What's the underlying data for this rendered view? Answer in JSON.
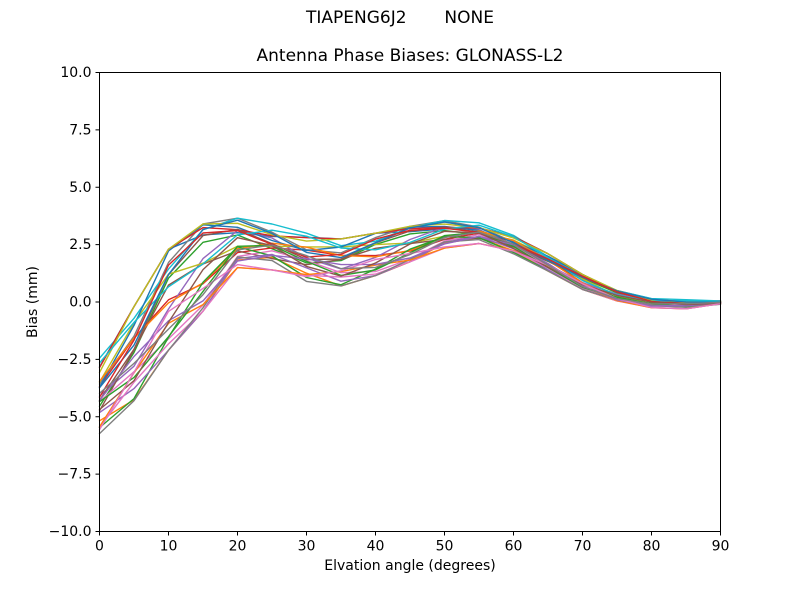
{
  "figure": {
    "suptitle": "TIAPENG6J2       NONE",
    "background": "#ffffff",
    "text_color": "#000000"
  },
  "chart_data": {
    "type": "line",
    "title": "Antenna Phase Biases: GLONASS-L2",
    "xlabel": "Elvation angle (degrees)",
    "ylabel": "Bias (mm)",
    "xlim": [
      0,
      90
    ],
    "ylim": [
      -10.0,
      10.0
    ],
    "xticks": [
      0,
      10,
      20,
      30,
      40,
      50,
      60,
      70,
      80,
      90
    ],
    "yticks": [
      -10.0,
      -7.5,
      -5.0,
      -2.5,
      0.0,
      2.5,
      5.0,
      7.5,
      10.0
    ],
    "grid": false,
    "legend": "none",
    "n_series": 28,
    "series_colors": [
      "#1f77b4",
      "#ff7f0e",
      "#2ca02c",
      "#d62728",
      "#9467bd",
      "#8c564b",
      "#e377c2",
      "#7f7f7f",
      "#bcbd22",
      "#17becf"
    ],
    "band": {
      "x_degrees": [
        0,
        5,
        10,
        15,
        20,
        25,
        30,
        35,
        40,
        45,
        50,
        55,
        60,
        65,
        70,
        75,
        80,
        85,
        90
      ],
      "top_mm": [
        -2.45,
        -0.2,
        2.3,
        3.4,
        3.65,
        3.4,
        3.0,
        2.75,
        3.0,
        3.3,
        3.55,
        3.45,
        2.9,
        2.1,
        1.2,
        0.5,
        0.15,
        0.1,
        0.05
      ],
      "bottom_mm": [
        -5.9,
        -4.3,
        -2.1,
        -0.4,
        1.5,
        1.4,
        0.85,
        0.7,
        1.15,
        1.75,
        2.35,
        2.55,
        2.1,
        1.35,
        0.55,
        0.05,
        -0.25,
        -0.3,
        -0.1
      ]
    }
  }
}
